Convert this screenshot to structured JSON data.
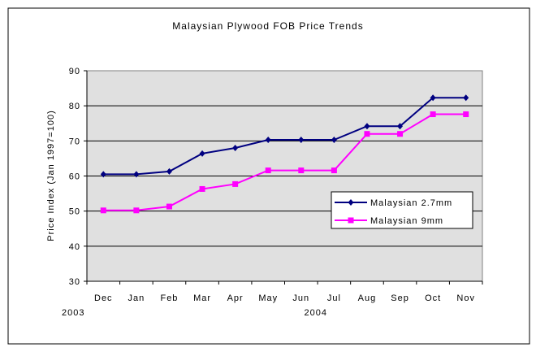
{
  "chart_data": {
    "type": "line",
    "title": "Malaysian Plywood FOB Price Trends",
    "xlabel": "",
    "ylabel": "Price Index (Jan 1997=100)",
    "ylim": [
      30,
      90
    ],
    "yticks": [
      30,
      40,
      50,
      60,
      70,
      80,
      90
    ],
    "categories": [
      "Dec",
      "Jan",
      "Feb",
      "Mar",
      "Apr",
      "May",
      "Jun",
      "Jul",
      "Aug",
      "Sep",
      "Oct",
      "Nov"
    ],
    "year_labels": [
      {
        "label": "2003",
        "category": "Dec"
      },
      {
        "label": "2004",
        "category": "Jun"
      }
    ],
    "grid": true,
    "legend_position": "lower-right",
    "series": [
      {
        "name": "Malaysian 2.7mm",
        "color": "#000080",
        "marker": "diamond",
        "values": [
          60.5,
          60.5,
          61.3,
          66.4,
          68.0,
          70.3,
          70.3,
          70.3,
          74.2,
          74.2,
          82.3,
          82.3
        ]
      },
      {
        "name": "Malaysian 9mm",
        "color": "#ff00ff",
        "marker": "square",
        "values": [
          50.2,
          50.2,
          51.3,
          56.3,
          57.7,
          61.6,
          61.6,
          61.6,
          72.0,
          72.0,
          77.6,
          77.6
        ]
      }
    ],
    "plot_background": "#e0e0e0"
  }
}
